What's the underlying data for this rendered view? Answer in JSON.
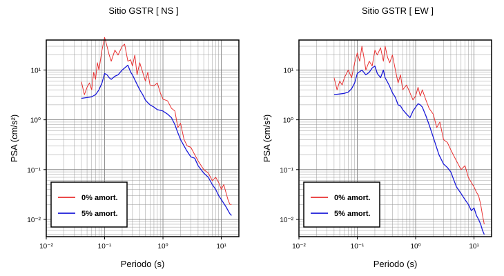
{
  "chart_data": [
    {
      "type": "line",
      "title": "Sitio GSTR [ NS ]",
      "xlabel": "Periodo (s)",
      "ylabel": "PSA (cm/s²)",
      "xscale": "log",
      "yscale": "log",
      "xlim": [
        0.01,
        20
      ],
      "ylim": [
        0.0045,
        40
      ],
      "xticks": [
        0.01,
        0.1,
        1,
        10
      ],
      "xtick_labels": [
        "10⁻²",
        "10⁻¹",
        "10⁰",
        "10¹"
      ],
      "yticks": [
        0.01,
        0.1,
        1,
        10
      ],
      "ytick_labels": [
        "10⁻²",
        "10⁻¹",
        "10⁰",
        "10¹"
      ],
      "grid": true,
      "legend_position": "bottom-left",
      "series": [
        {
          "name": "0% amort.",
          "color": "#e83030",
          "x": [
            0.04,
            0.045,
            0.05,
            0.055,
            0.06,
            0.065,
            0.07,
            0.075,
            0.08,
            0.09,
            0.1,
            0.11,
            0.12,
            0.13,
            0.15,
            0.17,
            0.2,
            0.22,
            0.25,
            0.28,
            0.3,
            0.33,
            0.36,
            0.4,
            0.45,
            0.5,
            0.55,
            0.6,
            0.7,
            0.8,
            0.9,
            1.0,
            1.2,
            1.4,
            1.6,
            1.8,
            2.0,
            2.3,
            2.6,
            3.0,
            3.5,
            4.0,
            5.0,
            6.0,
            7.0,
            8.0,
            9.0,
            10.0,
            11.0,
            12.0,
            13.0,
            14.0,
            15.0
          ],
          "y": [
            5.8,
            3.2,
            4.5,
            5.5,
            4.0,
            9.0,
            6.5,
            14.0,
            10.0,
            25.0,
            45.0,
            30.0,
            20.0,
            15.0,
            25.0,
            20.0,
            30.0,
            33.0,
            15.0,
            16.0,
            12.0,
            20.0,
            8.0,
            14.0,
            9.0,
            6.0,
            9.0,
            5.0,
            4.8,
            5.5,
            3.5,
            2.6,
            2.4,
            1.7,
            1.5,
            0.7,
            0.85,
            0.4,
            0.3,
            0.28,
            0.2,
            0.15,
            0.1,
            0.085,
            0.06,
            0.07,
            0.055,
            0.04,
            0.05,
            0.035,
            0.025,
            0.02,
            0.02
          ]
        },
        {
          "name": "5% amort.",
          "color": "#1a1ad8",
          "x": [
            0.04,
            0.05,
            0.06,
            0.07,
            0.08,
            0.09,
            0.1,
            0.11,
            0.12,
            0.13,
            0.15,
            0.17,
            0.2,
            0.22,
            0.25,
            0.28,
            0.3,
            0.35,
            0.4,
            0.45,
            0.5,
            0.55,
            0.6,
            0.7,
            0.8,
            0.9,
            1.0,
            1.2,
            1.4,
            1.6,
            1.8,
            2.0,
            2.5,
            3.0,
            3.5,
            4.0,
            5.0,
            6.0,
            7.0,
            8.0,
            9.0,
            10.0,
            12.0,
            14.0,
            15.0
          ],
          "y": [
            2.7,
            2.8,
            2.9,
            3.2,
            4.0,
            5.5,
            8.5,
            8.0,
            7.0,
            6.5,
            7.5,
            8.0,
            10.0,
            11.0,
            12.5,
            9.0,
            8.0,
            5.5,
            4.0,
            3.2,
            2.5,
            2.2,
            2.0,
            1.8,
            1.6,
            1.55,
            1.5,
            1.3,
            1.1,
            0.8,
            0.55,
            0.4,
            0.25,
            0.18,
            0.17,
            0.12,
            0.085,
            0.07,
            0.05,
            0.04,
            0.03,
            0.025,
            0.018,
            0.013,
            0.012
          ]
        }
      ]
    },
    {
      "type": "line",
      "title": "Sitio GSTR [ EW ]",
      "xlabel": "Periodo (s)",
      "ylabel": "PSA (cm/s²)",
      "xscale": "log",
      "yscale": "log",
      "xlim": [
        0.01,
        20
      ],
      "ylim": [
        0.0045,
        40
      ],
      "xticks": [
        0.01,
        0.1,
        1,
        10
      ],
      "xtick_labels": [
        "10⁻²",
        "10⁻¹",
        "10⁰",
        "10¹"
      ],
      "yticks": [
        0.01,
        0.1,
        1,
        10
      ],
      "ytick_labels": [
        "10⁻²",
        "10⁻¹",
        "10⁰",
        "10¹"
      ],
      "grid": true,
      "legend_position": "bottom-left",
      "series": [
        {
          "name": "0% amort.",
          "color": "#e83030",
          "x": [
            0.04,
            0.045,
            0.05,
            0.055,
            0.06,
            0.07,
            0.08,
            0.09,
            0.1,
            0.11,
            0.12,
            0.13,
            0.14,
            0.16,
            0.18,
            0.2,
            0.22,
            0.25,
            0.28,
            0.3,
            0.33,
            0.36,
            0.4,
            0.45,
            0.5,
            0.55,
            0.6,
            0.7,
            0.8,
            0.9,
            1.0,
            1.1,
            1.2,
            1.3,
            1.5,
            1.7,
            2.0,
            2.3,
            2.6,
            3.0,
            3.5,
            4.0,
            5.0,
            6.0,
            7.0,
            8.0,
            9.0,
            10.0,
            11.0,
            12.0,
            13.0,
            14.0,
            15.0
          ],
          "y": [
            7.0,
            4.0,
            6.0,
            5.0,
            7.0,
            10.0,
            7.0,
            14.0,
            22.0,
            15.0,
            30.0,
            18.0,
            10.0,
            15.0,
            12.0,
            25.0,
            20.0,
            28.0,
            15.0,
            30.0,
            18.0,
            14.0,
            20.0,
            10.0,
            5.5,
            8.0,
            4.0,
            5.0,
            3.5,
            2.5,
            3.0,
            4.5,
            3.0,
            4.0,
            2.5,
            1.7,
            1.3,
            0.7,
            0.9,
            0.4,
            0.35,
            0.25,
            0.15,
            0.1,
            0.12,
            0.07,
            0.055,
            0.045,
            0.035,
            0.03,
            0.02,
            0.012,
            0.008
          ]
        },
        {
          "name": "5% amort.",
          "color": "#1a1ad8",
          "x": [
            0.04,
            0.05,
            0.06,
            0.07,
            0.08,
            0.09,
            0.1,
            0.12,
            0.14,
            0.16,
            0.18,
            0.2,
            0.22,
            0.25,
            0.28,
            0.3,
            0.35,
            0.4,
            0.45,
            0.5,
            0.55,
            0.6,
            0.7,
            0.8,
            0.9,
            1.0,
            1.1,
            1.2,
            1.3,
            1.5,
            1.7,
            2.0,
            2.5,
            3.0,
            3.5,
            4.0,
            5.0,
            6.0,
            7.0,
            8.0,
            9.0,
            10.0,
            11.0,
            12.0,
            13.0,
            14.0,
            15.0
          ],
          "y": [
            3.2,
            3.3,
            3.4,
            3.6,
            4.2,
            5.5,
            8.5,
            10.0,
            8.0,
            9.0,
            11.0,
            12.0,
            8.5,
            7.0,
            10.0,
            7.0,
            5.0,
            3.5,
            2.8,
            2.0,
            1.9,
            1.6,
            1.3,
            1.1,
            1.5,
            1.8,
            2.1,
            2.0,
            1.8,
            1.2,
            0.8,
            0.45,
            0.2,
            0.13,
            0.11,
            0.09,
            0.045,
            0.033,
            0.025,
            0.02,
            0.015,
            0.017,
            0.012,
            0.01,
            0.008,
            0.006,
            0.005
          ]
        }
      ]
    }
  ]
}
